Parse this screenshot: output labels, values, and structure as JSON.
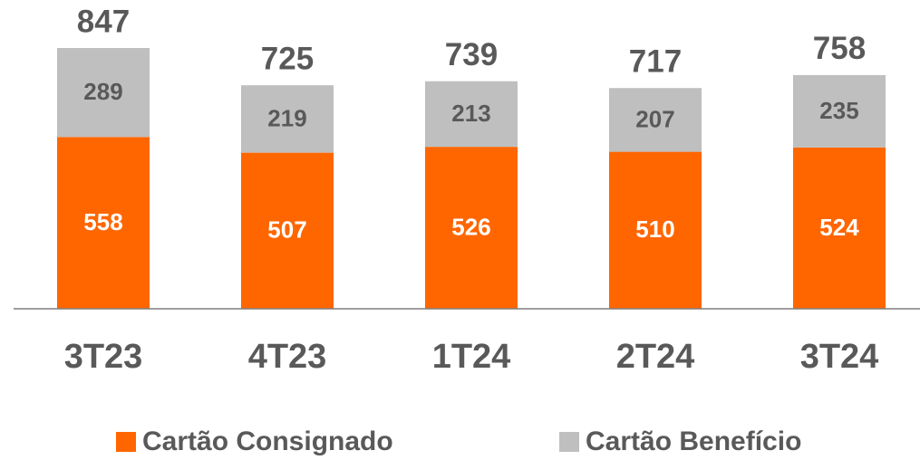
{
  "chart_data": {
    "type": "stacked_bar",
    "categories": [
      "3T23",
      "4T23",
      "1T24",
      "2T24",
      "3T24"
    ],
    "series": [
      {
        "name": "Cartão Consignado",
        "color": "#ff6600",
        "values": [
          558,
          507,
          526,
          510,
          524
        ]
      },
      {
        "name": "Cartão Benefício",
        "color": "#bfbfbf",
        "values": [
          289,
          219,
          213,
          207,
          235
        ]
      }
    ],
    "totals": [
      847,
      725,
      739,
      717,
      758
    ],
    "ylim": [
      0,
      1000
    ]
  }
}
